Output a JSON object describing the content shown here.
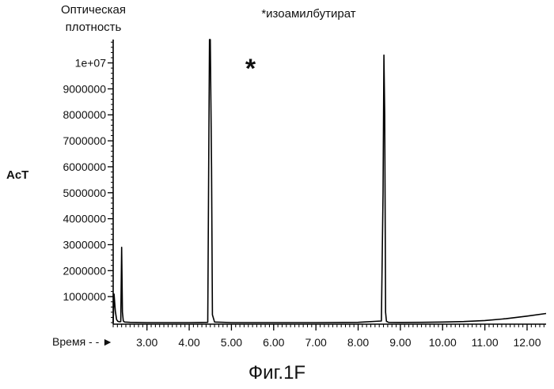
{
  "chart_data": {
    "type": "line",
    "title": "*изоамилбутират",
    "ylabel_lines": [
      "Оптическая",
      "плотность"
    ],
    "ylabel_side": "AcT",
    "xlabel": "Время - - ►",
    "figure_caption": "Фиг.1F",
    "annotations": [
      {
        "text": "*",
        "x": 5.45,
        "y": 9800000
      }
    ],
    "xlim": [
      2.2,
      12.45
    ],
    "ylim": [
      0,
      10900000
    ],
    "x_ticks": [
      3.0,
      4.0,
      5.0,
      6.0,
      7.0,
      8.0,
      9.0,
      10.0,
      11.0,
      12.0
    ],
    "x_tick_labels": [
      "3.00",
      "4.00",
      "5.00",
      "6.00",
      "7.00",
      "8.00",
      "9.00",
      "10.00",
      "11.00",
      "12.00"
    ],
    "y_ticks": [
      1000000,
      2000000,
      3000000,
      4000000,
      5000000,
      6000000,
      7000000,
      8000000,
      9000000,
      10000000
    ],
    "y_tick_labels": [
      "1000000",
      "2000000",
      "3000000",
      "4000000",
      "5000000",
      "6000000",
      "7000000",
      "8000000",
      "9000000",
      "1e+07"
    ],
    "grid": false,
    "series": [
      {
        "x": [
          2.2,
          2.22,
          2.25,
          2.28,
          2.31,
          2.35,
          2.38,
          2.4,
          2.42,
          2.44,
          2.47,
          2.6,
          3.0,
          4.0,
          4.44,
          4.47,
          4.48,
          4.5,
          4.53,
          4.55,
          4.6,
          5.0,
          6.0,
          7.0,
          8.0,
          8.55,
          8.59,
          8.61,
          8.63,
          8.65,
          8.67,
          8.72,
          9.0,
          9.5,
          10.0,
          10.5,
          11.0,
          11.5,
          12.0,
          12.45
        ],
        "y": [
          0,
          1100000,
          450000,
          120000,
          50000,
          30000,
          40000,
          2900000,
          400000,
          60000,
          20000,
          10000,
          0,
          0,
          10000,
          8000000,
          11000000,
          11000000,
          6000000,
          300000,
          20000,
          0,
          0,
          0,
          10000,
          60000,
          5000000,
          10300000,
          8000000,
          400000,
          50000,
          10000,
          5000,
          10000,
          20000,
          40000,
          80000,
          150000,
          250000,
          350000
        ]
      }
    ]
  }
}
